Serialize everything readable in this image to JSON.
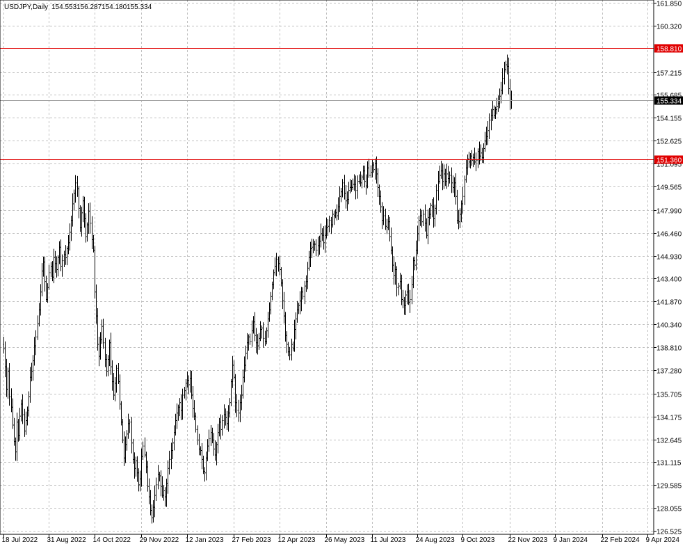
{
  "header": {
    "symbol": "USDJPY,Daily",
    "open": "154.553",
    "high": "156.287",
    "low": "154.180",
    "close": "155.334"
  },
  "chart_data": {
    "type": "bar",
    "subtype": "ohlc",
    "symbol": "USDJPY",
    "timeframe": "Daily",
    "ylim": [
      126.525,
      161.85
    ],
    "grid": true,
    "y_ticks": [
      "161.850",
      "160.320",
      "157.215",
      "155.685",
      "154.155",
      "152.625",
      "151.095",
      "149.565",
      "147.990",
      "146.460",
      "144.930",
      "143.400",
      "141.870",
      "140.340",
      "138.810",
      "137.280",
      "135.705",
      "134.175",
      "132.645",
      "131.115",
      "129.585",
      "128.055",
      "126.525"
    ],
    "x_ticks": [
      "18 Jul 2022",
      "31 Aug 2022",
      "14 Oct 2022",
      "29 Nov 2022",
      "12 Jan 2023",
      "27 Feb 2023",
      "12 Apr 2023",
      "26 May 2023",
      "11 Jul 2023",
      "24 Aug 2023",
      "9 Oct 2023",
      "22 Nov 2023",
      "9 Jan 2024",
      "22 Feb 2024",
      "9 Apr 2024"
    ],
    "x_tick_index": [
      0,
      31,
      62,
      94,
      125,
      157,
      188,
      220,
      251,
      282,
      313,
      345,
      376,
      408,
      439
    ],
    "closes": [
      138.7,
      137.5,
      136.0,
      137.2,
      135.5,
      134.8,
      133.6,
      132.5,
      131.8,
      133.8,
      132.9,
      134.2,
      135.0,
      134.3,
      133.2,
      133.9,
      134.6,
      135.5,
      136.8,
      137.2,
      137.9,
      138.9,
      139.5,
      140.4,
      141.3,
      142.5,
      143.9,
      144.5,
      143.2,
      142.0,
      142.8,
      143.8,
      144.2,
      143.5,
      144.8,
      144.4,
      144.0,
      144.8,
      145.5,
      144.2,
      144.6,
      145.0,
      144.8,
      145.4,
      145.8,
      146.5,
      147.3,
      148.4,
      149.1,
      149.8,
      149.4,
      148.1,
      146.8,
      147.8,
      148.6,
      147.4,
      146.2,
      147.0,
      147.9,
      147.1,
      146.0,
      145.3,
      142.5,
      140.9,
      139.0,
      138.2,
      139.3,
      140.2,
      139.1,
      138.0,
      137.2,
      138.0,
      139.1,
      137.5,
      136.5,
      135.6,
      136.4,
      137.4,
      136.5,
      135.0,
      133.8,
      132.6,
      131.4,
      132.3,
      133.0,
      133.7,
      133.8,
      132.4,
      131.3,
      130.7,
      131.2,
      130.4,
      129.6,
      130.0,
      131.5,
      132.2,
      131.6,
      130.8,
      129.5,
      128.8,
      127.9,
      127.4,
      128.1,
      128.9,
      129.6,
      130.3,
      130.2,
      129.5,
      128.9,
      129.2,
      128.8,
      129.7,
      130.7,
      131.3,
      131.9,
      132.4,
      133.1,
      133.9,
      134.4,
      134.8,
      135.1,
      134.6,
      135.6,
      135.9,
      136.4,
      136.6,
      136.3,
      136.7,
      135.6,
      134.7,
      134.2,
      133.3,
      132.6,
      132.0,
      131.9,
      131.3,
      130.5,
      130.4,
      131.4,
      132.2,
      132.7,
      133.1,
      132.6,
      132.0,
      131.6,
      132.3,
      133.1,
      133.8,
      133.3,
      133.9,
      134.3,
      134.1,
      133.7,
      134.4,
      135.1,
      136.5,
      137.6,
      136.8,
      135.1,
      134.6,
      134.4,
      135.1,
      135.6,
      136.8,
      137.6,
      138.4,
      139.1,
      139.5,
      139.2,
      139.9,
      140.5,
      139.6,
      139.1,
      138.9,
      139.4,
      140.0,
      140.1,
      139.4,
      139.2,
      139.9,
      140.7,
      141.3,
      142.2,
      143.0,
      143.8,
      144.2,
      144.7,
      144.4,
      144.0,
      143.1,
      141.9,
      140.9,
      139.6,
      139.0,
      138.5,
      138.3,
      139.0,
      138.7,
      140.0,
      140.7,
      141.3,
      141.6,
      141.9,
      142.5,
      142.2,
      142.9,
      143.2,
      144.1,
      144.8,
      145.4,
      145.5,
      145.7,
      145.7,
      145.3,
      145.6,
      145.9,
      146.4,
      146.3,
      145.8,
      146.3,
      146.8,
      146.9,
      147.3,
      147.0,
      147.7,
      147.6,
      147.8,
      147.6,
      148.2,
      148.9,
      149.2,
      149.8,
      149.1,
      148.6,
      148.7,
      149.3,
      149.5,
      149.5,
      149.7,
      149.7,
      149.3,
      149.9,
      149.9,
      149.8,
      150.2,
      150.6,
      149.9,
      149.6,
      150.8,
      150.3,
      150.5,
      151.0,
      150.7,
      151.1,
      150.4,
      149.5,
      148.9,
      148.2,
      147.3,
      147.6,
      146.9,
      146.8,
      147.2,
      146.2,
      145.3,
      144.3,
      143.6,
      144.0,
      142.8,
      142.9,
      143.2,
      142.0,
      141.9,
      141.6,
      142.3,
      142.5,
      141.8,
      142.0,
      143.0,
      144.6,
      144.3,
      145.3,
      146.4,
      147.3,
      147.6,
      147.2,
      147.7,
      147.1,
      146.3,
      147.5,
      147.7,
      148.3,
      148.2,
      147.4,
      148.1,
      149.3,
      149.9,
      150.3,
      150.6,
      149.9,
      150.4,
      149.9,
      150.4,
      150.1,
      150.3,
      149.8,
      149.5,
      149.8,
      148.9,
      147.3,
      147.2,
      147.7,
      148.4,
      148.9,
      150.0,
      150.8,
      151.4,
      151.2,
      151.6,
      151.3,
      151.5,
      151.2,
      151.3,
      151.9,
      151.6,
      151.8,
      151.5,
      152.1,
      152.6,
      152.9,
      153.3,
      154.0,
      154.3,
      154.7,
      154.3,
      154.7,
      154.9,
      155.1,
      155.6,
      156.0,
      156.8,
      157.4,
      157.7,
      157.6,
      156.1,
      155.3,
      155.334
    ],
    "annotations": {
      "horizontal_lines": [
        {
          "label": "158.810",
          "value": 158.81,
          "color": "#e00000"
        },
        {
          "label": "151.360",
          "value": 151.36,
          "color": "#e00000"
        },
        {
          "label": "155.334",
          "value": 155.334,
          "color": "#a0a0a0"
        }
      ]
    }
  },
  "colors": {
    "background": "#ffffff",
    "grid": "#c0c0c0",
    "bars": "#000000",
    "level_line": "#e00000",
    "price_line": "#a0a0a0",
    "price_label_bg": "#000000"
  }
}
